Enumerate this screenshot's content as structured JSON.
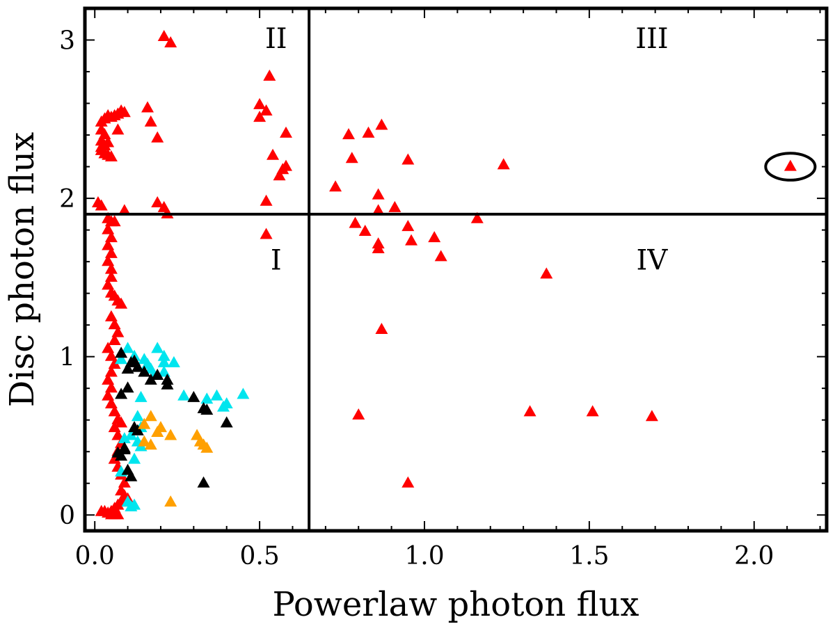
{
  "chart_data": {
    "type": "scatter",
    "marker": "triangle",
    "xlabel": "Powerlaw photon flux",
    "ylabel": "Disc photon flux",
    "xlim": [
      -0.03,
      2.22
    ],
    "ylim": [
      -0.1,
      3.2
    ],
    "xticks": [
      "0.0",
      "0.5",
      "1.0",
      "1.5",
      "2.0"
    ],
    "xtick_values": [
      0,
      0.5,
      1.0,
      1.5,
      2.0
    ],
    "yticks": [
      "0",
      "1",
      "2",
      "3"
    ],
    "ytick_values": [
      0,
      1,
      2,
      3
    ],
    "dividers": {
      "x": 0.65,
      "y": 1.9
    },
    "regions": [
      {
        "label": "I",
        "x": 0.55,
        "y": 1.55
      },
      {
        "label": "II",
        "x": 0.55,
        "y": 2.95
      },
      {
        "label": "III",
        "x": 1.69,
        "y": 2.95
      },
      {
        "label": "IV",
        "x": 1.69,
        "y": 1.55
      }
    ],
    "highlight": {
      "x": 2.11,
      "y": 2.2,
      "rx": 0.075,
      "ry": 0.085,
      "color": "#000000"
    },
    "series": [
      {
        "name": "red",
        "color": "#ff0000",
        "points": [
          [
            0.21,
            3.02
          ],
          [
            0.23,
            2.98
          ],
          [
            0.53,
            2.77
          ],
          [
            0.5,
            2.59
          ],
          [
            0.52,
            2.55
          ],
          [
            0.5,
            2.51
          ],
          [
            0.58,
            2.41
          ],
          [
            0.54,
            2.27
          ],
          [
            0.58,
            2.2
          ],
          [
            0.57,
            2.18
          ],
          [
            0.56,
            2.14
          ],
          [
            0.52,
            1.98
          ],
          [
            0.52,
            1.77
          ],
          [
            0.16,
            2.57
          ],
          [
            0.17,
            2.48
          ],
          [
            0.19,
            2.38
          ],
          [
            0.19,
            1.97
          ],
          [
            0.21,
            1.94
          ],
          [
            0.22,
            1.9
          ],
          [
            0.09,
            1.92
          ],
          [
            0.02,
            2.48
          ],
          [
            0.03,
            2.5
          ],
          [
            0.04,
            2.52
          ],
          [
            0.05,
            2.51
          ],
          [
            0.06,
            2.52
          ],
          [
            0.07,
            2.53
          ],
          [
            0.08,
            2.55
          ],
          [
            0.09,
            2.54
          ],
          [
            0.07,
            2.43
          ],
          [
            0.02,
            2.43
          ],
          [
            0.03,
            2.4
          ],
          [
            0.02,
            2.36
          ],
          [
            0.03,
            2.33
          ],
          [
            0.02,
            2.3
          ],
          [
            0.03,
            2.28
          ],
          [
            0.04,
            2.27
          ],
          [
            0.05,
            2.26
          ],
          [
            0.02,
            2.32
          ],
          [
            0.04,
            2.35
          ],
          [
            0.01,
            1.97
          ],
          [
            0.02,
            1.95
          ],
          [
            0.77,
            2.4
          ],
          [
            0.78,
            2.25
          ],
          [
            0.83,
            2.41
          ],
          [
            0.87,
            2.46
          ],
          [
            0.73,
            2.07
          ],
          [
            0.86,
            2.02
          ],
          [
            0.86,
            1.92
          ],
          [
            0.95,
            2.24
          ],
          [
            1.24,
            2.21
          ],
          [
            2.11,
            2.2
          ],
          [
            0.91,
            1.94
          ],
          [
            0.79,
            1.84
          ],
          [
            0.82,
            1.79
          ],
          [
            0.86,
            1.71
          ],
          [
            0.86,
            1.68
          ],
          [
            0.95,
            1.82
          ],
          [
            0.96,
            1.73
          ],
          [
            1.03,
            1.75
          ],
          [
            1.05,
            1.63
          ],
          [
            1.16,
            1.87
          ],
          [
            1.37,
            1.52
          ],
          [
            0.87,
            1.17
          ],
          [
            0.8,
            0.63
          ],
          [
            1.32,
            0.65
          ],
          [
            1.51,
            0.65
          ],
          [
            1.69,
            0.62
          ],
          [
            0.95,
            0.2
          ],
          [
            0.04,
            1.87
          ],
          [
            0.05,
            1.85
          ],
          [
            0.06,
            1.85
          ],
          [
            0.04,
            1.8
          ],
          [
            0.05,
            1.75
          ],
          [
            0.04,
            1.7
          ],
          [
            0.05,
            1.65
          ],
          [
            0.04,
            1.6
          ],
          [
            0.05,
            1.55
          ],
          [
            0.05,
            1.5
          ],
          [
            0.04,
            1.45
          ],
          [
            0.05,
            1.4
          ],
          [
            0.06,
            1.38
          ],
          [
            0.07,
            1.35
          ],
          [
            0.08,
            1.33
          ],
          [
            0.05,
            1.25
          ],
          [
            0.06,
            1.2
          ],
          [
            0.07,
            1.15
          ],
          [
            0.06,
            1.1
          ],
          [
            0.04,
            1.05
          ],
          [
            0.05,
            1.0
          ],
          [
            0.06,
            0.95
          ],
          [
            0.05,
            0.9
          ],
          [
            0.04,
            0.85
          ],
          [
            0.05,
            0.8
          ],
          [
            0.04,
            0.75
          ],
          [
            0.05,
            0.7
          ],
          [
            0.06,
            0.65
          ],
          [
            0.07,
            0.6
          ],
          [
            0.08,
            0.58
          ],
          [
            0.06,
            0.55
          ],
          [
            0.07,
            0.5
          ],
          [
            0.08,
            0.45
          ],
          [
            0.07,
            0.4
          ],
          [
            0.06,
            0.35
          ],
          [
            0.07,
            0.3
          ],
          [
            0.08,
            0.25
          ],
          [
            0.09,
            0.2
          ],
          [
            0.08,
            0.15
          ],
          [
            0.09,
            0.12
          ],
          [
            0.1,
            0.1
          ],
          [
            0.08,
            0.08
          ],
          [
            0.07,
            0.06
          ],
          [
            0.06,
            0.04
          ],
          [
            0.05,
            0.02
          ],
          [
            0.04,
            0.01
          ],
          [
            0.06,
            0.0
          ],
          [
            0.07,
            0.0
          ],
          [
            0.02,
            0.02
          ],
          [
            0.03,
            0.02
          ],
          [
            0.05,
            0.0
          ]
        ]
      },
      {
        "name": "cyan",
        "color": "#00e5ee",
        "points": [
          [
            0.1,
            1.05
          ],
          [
            0.12,
            1.0
          ],
          [
            0.15,
            0.98
          ],
          [
            0.16,
            0.95
          ],
          [
            0.17,
            0.92
          ],
          [
            0.19,
            1.05
          ],
          [
            0.21,
            1.0
          ],
          [
            0.21,
            0.96
          ],
          [
            0.24,
            0.96
          ],
          [
            0.18,
            0.88
          ],
          [
            0.21,
            0.9
          ],
          [
            0.27,
            0.75
          ],
          [
            0.34,
            0.73
          ],
          [
            0.37,
            0.75
          ],
          [
            0.4,
            0.7
          ],
          [
            0.39,
            0.68
          ],
          [
            0.45,
            0.76
          ],
          [
            0.08,
            0.98
          ],
          [
            0.14,
            0.74
          ],
          [
            0.13,
            0.62
          ],
          [
            0.14,
            0.55
          ],
          [
            0.11,
            0.5
          ],
          [
            0.13,
            0.46
          ],
          [
            0.14,
            0.43
          ],
          [
            0.09,
            0.48
          ],
          [
            0.12,
            0.35
          ],
          [
            0.08,
            0.27
          ],
          [
            0.1,
            0.08
          ],
          [
            0.11,
            0.05
          ],
          [
            0.12,
            0.06
          ]
        ]
      },
      {
        "name": "black",
        "color": "#000000",
        "points": [
          [
            0.08,
            1.02
          ],
          [
            0.11,
            0.96
          ],
          [
            0.12,
            0.97
          ],
          [
            0.13,
            0.93
          ],
          [
            0.1,
            0.92
          ],
          [
            0.17,
            0.85
          ],
          [
            0.15,
            0.9
          ],
          [
            0.19,
            0.88
          ],
          [
            0.22,
            0.85
          ],
          [
            0.22,
            0.82
          ],
          [
            0.1,
            0.8
          ],
          [
            0.08,
            0.76
          ],
          [
            0.3,
            0.74
          ],
          [
            0.33,
            0.67
          ],
          [
            0.34,
            0.66
          ],
          [
            0.4,
            0.58
          ],
          [
            0.12,
            0.55
          ],
          [
            0.13,
            0.53
          ],
          [
            0.09,
            0.42
          ],
          [
            0.07,
            0.39
          ],
          [
            0.08,
            0.37
          ],
          [
            0.1,
            0.28
          ],
          [
            0.11,
            0.24
          ],
          [
            0.33,
            0.2
          ],
          [
            0.09,
            0.41
          ]
        ]
      },
      {
        "name": "orange",
        "color": "#ffa000",
        "points": [
          [
            0.17,
            0.62
          ],
          [
            0.15,
            0.57
          ],
          [
            0.19,
            0.52
          ],
          [
            0.2,
            0.55
          ],
          [
            0.23,
            0.5
          ],
          [
            0.15,
            0.46
          ],
          [
            0.17,
            0.44
          ],
          [
            0.31,
            0.5
          ],
          [
            0.32,
            0.46
          ],
          [
            0.33,
            0.44
          ],
          [
            0.34,
            0.42
          ],
          [
            0.23,
            0.08
          ]
        ]
      }
    ]
  }
}
